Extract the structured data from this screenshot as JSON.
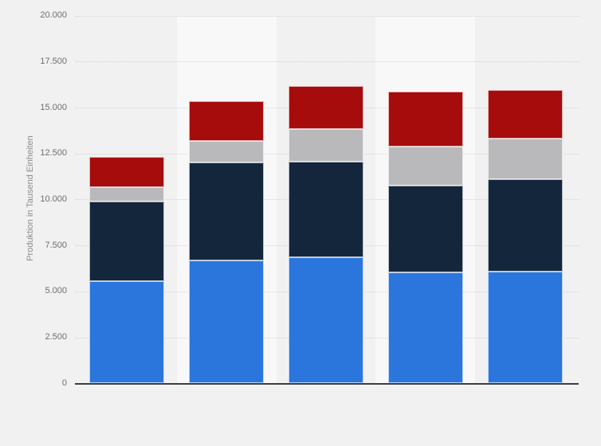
{
  "chart_data": {
    "type": "bar",
    "stacked": true,
    "title": "",
    "xlabel": "",
    "ylabel": "Produktion in Tausend Einheiten",
    "ylim": [
      0,
      20000
    ],
    "ytick_step": 2500,
    "yticks": [
      "20.000",
      "17.500",
      "15.000",
      "12.500",
      "10.000",
      "7.500",
      "5.000",
      "2.500",
      "0"
    ],
    "grid": "horizontal-dotted",
    "legend_position": "none",
    "x_axis_labels_visible": false,
    "categories": [
      "",
      "",
      "",
      "",
      ""
    ],
    "series": [
      {
        "name": "blue-bottom-segment",
        "color": "#2b76dd",
        "values": [
          5550,
          6680,
          6850,
          6050,
          6090
        ]
      },
      {
        "name": "dark-navy-segment",
        "color": "#13263c",
        "values": [
          4350,
          5330,
          5190,
          4720,
          5010
        ]
      },
      {
        "name": "gray-segment",
        "color": "#b9b9bb",
        "values": [
          780,
          1180,
          1800,
          2090,
          2200
        ]
      },
      {
        "name": "dark-red-top-segment",
        "color": "#a60c0c",
        "values": [
          1620,
          2140,
          2320,
          3010,
          2640
        ]
      }
    ],
    "stack_totals": [
      12300,
      15330,
      16160,
      15870,
      15940
    ]
  },
  "colors": {
    "page_background": "#f1f1f2",
    "band_light": "#f8f8f8",
    "gridline": "#d5d5d6",
    "axis_line": "#3d3d3d",
    "tick_label": "#6e6e6e",
    "axis_title": "#8c8c8c"
  }
}
